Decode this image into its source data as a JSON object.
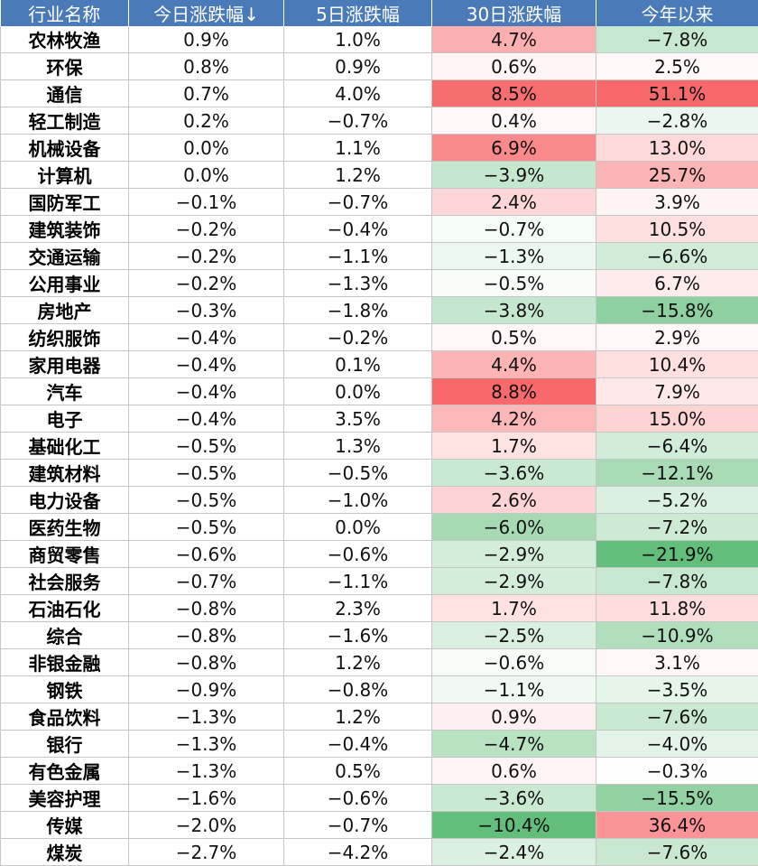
{
  "chart_data": {
    "type": "table",
    "columns": [
      "行业名称",
      "今日涨跌幅↓",
      "5日涨跌幅",
      "30日涨跌幅",
      "今年以来"
    ],
    "rows": [
      [
        "农林牧渔",
        "0.9%",
        "1.0%",
        "4.7%",
        "−7.8%"
      ],
      [
        "环保",
        "0.8%",
        "0.9%",
        "0.6%",
        "2.5%"
      ],
      [
        "通信",
        "0.7%",
        "4.0%",
        "8.5%",
        "51.1%"
      ],
      [
        "轻工制造",
        "0.2%",
        "−0.7%",
        "0.4%",
        "−2.8%"
      ],
      [
        "机械设备",
        "0.0%",
        "1.1%",
        "6.9%",
        "13.0%"
      ],
      [
        "计算机",
        "0.0%",
        "1.2%",
        "−3.9%",
        "25.7%"
      ],
      [
        "国防军工",
        "−0.1%",
        "−0.7%",
        "2.4%",
        "3.9%"
      ],
      [
        "建筑装饰",
        "−0.2%",
        "−0.4%",
        "−0.7%",
        "10.5%"
      ],
      [
        "交通运输",
        "−0.2%",
        "−1.1%",
        "−1.3%",
        "−6.6%"
      ],
      [
        "公用事业",
        "−0.2%",
        "−1.3%",
        "−0.5%",
        "6.7%"
      ],
      [
        "房地产",
        "−0.3%",
        "−1.8%",
        "−3.8%",
        "−15.8%"
      ],
      [
        "纺织服饰",
        "−0.4%",
        "−0.2%",
        "0.5%",
        "2.9%"
      ],
      [
        "家用电器",
        "−0.4%",
        "0.1%",
        "4.4%",
        "10.4%"
      ],
      [
        "汽车",
        "−0.4%",
        "0.0%",
        "8.8%",
        "7.9%"
      ],
      [
        "电子",
        "−0.4%",
        "3.5%",
        "4.2%",
        "15.0%"
      ],
      [
        "基础化工",
        "−0.5%",
        "1.3%",
        "1.7%",
        "−6.4%"
      ],
      [
        "建筑材料",
        "−0.5%",
        "−0.5%",
        "−3.6%",
        "−12.1%"
      ],
      [
        "电力设备",
        "−0.5%",
        "−1.0%",
        "2.6%",
        "−5.2%"
      ],
      [
        "医药生物",
        "−0.5%",
        "0.0%",
        "−6.0%",
        "−7.2%"
      ],
      [
        "商贸零售",
        "−0.6%",
        "−0.6%",
        "−2.9%",
        "−21.9%"
      ],
      [
        "社会服务",
        "−0.7%",
        "−1.1%",
        "−2.9%",
        "−7.8%"
      ],
      [
        "石油石化",
        "−0.8%",
        "2.3%",
        "1.7%",
        "11.8%"
      ],
      [
        "综合",
        "−0.8%",
        "−1.6%",
        "−2.5%",
        "−10.9%"
      ],
      [
        "非银金融",
        "−0.8%",
        "1.2%",
        "−0.6%",
        "3.1%"
      ],
      [
        "钢铁",
        "−0.9%",
        "−0.8%",
        "−1.1%",
        "−3.5%"
      ],
      [
        "食品饮料",
        "−1.3%",
        "1.2%",
        "0.9%",
        "−7.6%"
      ],
      [
        "银行",
        "−1.3%",
        "−0.4%",
        "−4.7%",
        "−4.0%"
      ],
      [
        "有色金属",
        "−1.3%",
        "0.5%",
        "0.6%",
        "−0.3%"
      ],
      [
        "美容护理",
        "−1.6%",
        "−0.6%",
        "−3.6%",
        "−15.5%"
      ],
      [
        "传媒",
        "−2.0%",
        "−0.7%",
        "−10.4%",
        "36.4%"
      ],
      [
        "煤炭",
        "−2.7%",
        "−4.2%",
        "−2.4%",
        "−7.6%"
      ]
    ],
    "colors": {
      "header_bg": "#4a7ab8",
      "header_text": "#ffffff",
      "positive": "#f8696b",
      "negative": "#63be7b",
      "neutral": "#ffffff",
      "border": "#c6c6c6"
    }
  }
}
